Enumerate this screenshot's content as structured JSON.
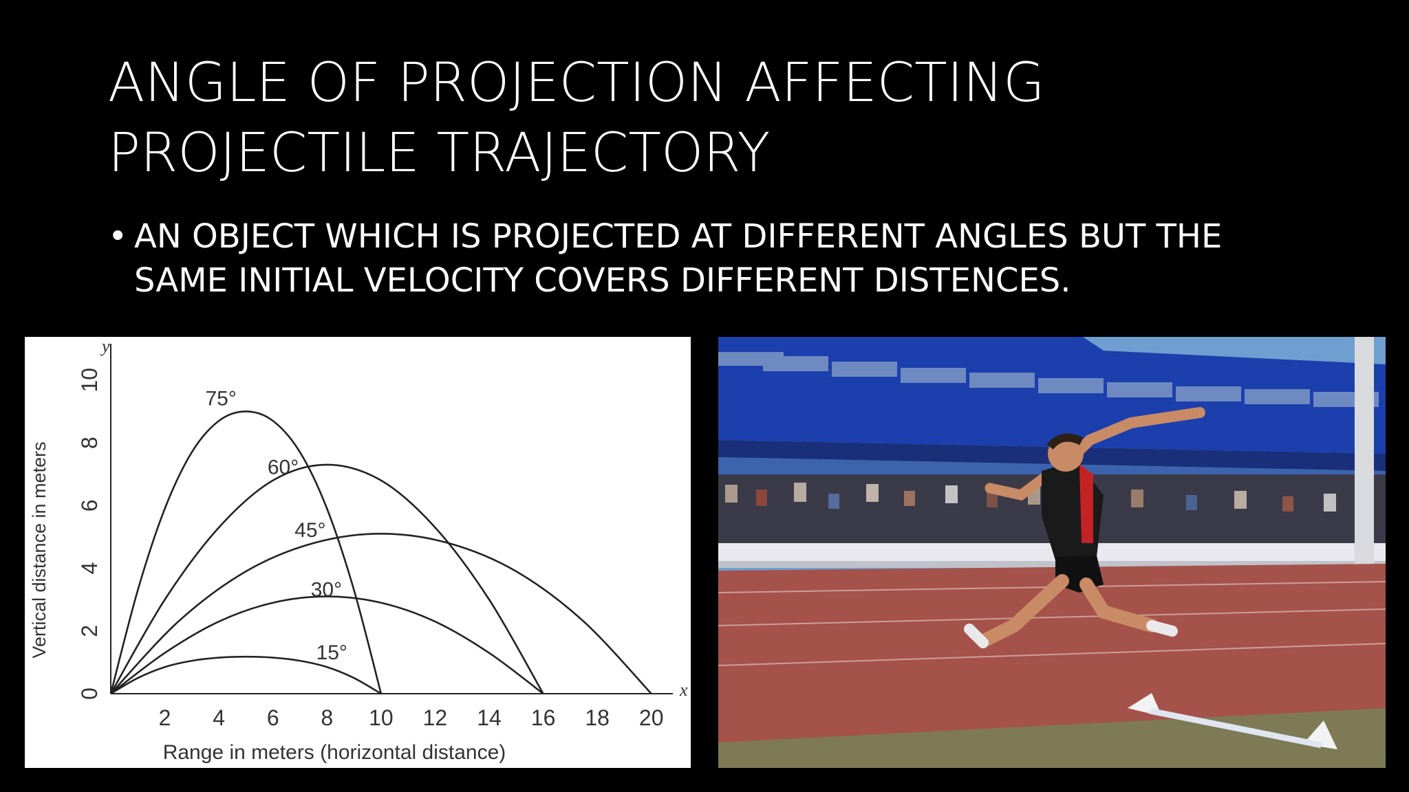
{
  "slide": {
    "title_line1": "ANGLE OF PROJECTION AFFECTING",
    "title_line2": "PROJECTILE TRAJECTORY",
    "bullet_mark": "•",
    "bullet_line1": "AN OBJECT WHICH IS PROJECTED AT DIFFERENT ANGLES BUT THE",
    "bullet_line2": "SAME INITIAL VELOCITY COVERS DIFFERENT DISTENCES."
  },
  "photo": {
    "subject": "long jumper mid-air on athletics track with stadium stands behind",
    "colors": {
      "sky": "#6f9fd0",
      "stand_wall": "#1c3fae",
      "track": "#a5524a",
      "seats": "#e8e8ee",
      "singlet": "#1a1a1a",
      "singlet_accent": "#c42326",
      "skin": "#c98a66",
      "grass": "#7d7a55"
    }
  },
  "chart_data": {
    "type": "line",
    "xlabel": "Range in meters (horizontal distance)",
    "ylabel": "Vertical distance in meters",
    "x_axis_symbol": "x",
    "y_axis_symbol": "y",
    "xlim": [
      0,
      21
    ],
    "ylim": [
      0,
      10.5
    ],
    "xticks": [
      0,
      2,
      4,
      6,
      8,
      10,
      12,
      14,
      16,
      18,
      20
    ],
    "yticks": [
      2,
      4,
      6,
      8,
      10
    ],
    "x_tick_labels": [
      "2",
      "4",
      "6",
      "8",
      "10",
      "12",
      "14",
      "16",
      "18",
      "20"
    ],
    "y_tick_labels": [
      "0",
      "2",
      "4",
      "6",
      "8",
      "10"
    ],
    "grid": false,
    "series": [
      {
        "name": "75°",
        "label_x": 3.5,
        "label_y": 9.2,
        "points": [
          [
            0,
            0
          ],
          [
            1,
            3.3
          ],
          [
            2,
            5.9
          ],
          [
            3,
            7.7
          ],
          [
            4,
            8.7
          ],
          [
            5,
            9.0
          ],
          [
            6,
            8.7
          ],
          [
            7,
            7.7
          ],
          [
            8,
            5.9
          ],
          [
            9,
            3.3
          ],
          [
            10,
            0
          ]
        ]
      },
      {
        "name": "60°",
        "label_x": 5.8,
        "label_y": 7.0,
        "points": [
          [
            0,
            0
          ],
          [
            2,
            3.0
          ],
          [
            4,
            5.3
          ],
          [
            6,
            6.8
          ],
          [
            8,
            7.3
          ],
          [
            10,
            6.8
          ],
          [
            12,
            5.3
          ],
          [
            14,
            3.0
          ],
          [
            16,
            0
          ]
        ]
      },
      {
        "name": "45°",
        "label_x": 6.8,
        "label_y": 5.0,
        "points": [
          [
            0,
            0
          ],
          [
            2.5,
            2.3
          ],
          [
            5,
            3.9
          ],
          [
            7.5,
            4.8
          ],
          [
            10,
            5.1
          ],
          [
            12.5,
            4.8
          ],
          [
            15,
            3.9
          ],
          [
            17.5,
            2.3
          ],
          [
            20,
            0
          ]
        ]
      },
      {
        "name": "30°",
        "label_x": 7.4,
        "label_y": 3.1,
        "points": [
          [
            0,
            0
          ],
          [
            2,
            1.3
          ],
          [
            4,
            2.3
          ],
          [
            6,
            2.9
          ],
          [
            8,
            3.1
          ],
          [
            10,
            2.9
          ],
          [
            12,
            2.3
          ],
          [
            14,
            1.3
          ],
          [
            16,
            0
          ]
        ]
      },
      {
        "name": "15°",
        "label_x": 7.6,
        "label_y": 1.1,
        "points": [
          [
            0,
            0
          ],
          [
            1,
            0.5
          ],
          [
            2,
            0.85
          ],
          [
            3,
            1.05
          ],
          [
            4,
            1.15
          ],
          [
            5,
            1.18
          ],
          [
            6,
            1.15
          ],
          [
            7,
            1.05
          ],
          [
            8,
            0.85
          ],
          [
            9,
            0.5
          ],
          [
            10,
            0
          ]
        ]
      }
    ],
    "colors": {
      "line": "#222222",
      "text": "#333333",
      "background": "#ffffff"
    }
  }
}
